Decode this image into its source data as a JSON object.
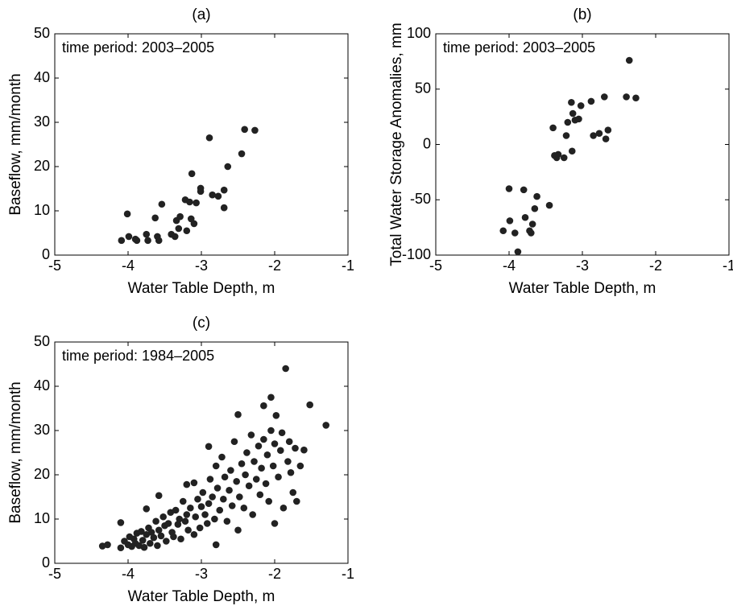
{
  "chart_data": [
    {
      "type": "scatter",
      "title": "(a)",
      "xlabel": "Water Table Depth, m",
      "ylabel": "Baseflow, mm/month",
      "annotation": "time period: 2003–2005",
      "color": "#222222",
      "x": [
        -4.09,
        -4.01,
        -3.99,
        -3.9,
        -3.88,
        -3.75,
        -3.73,
        -3.63,
        -3.6,
        -3.58,
        -3.54,
        -3.41,
        -3.36,
        -3.34,
        -3.31,
        -3.29,
        -3.22,
        -3.2,
        -3.16,
        -3.14,
        -3.13,
        -3.1,
        -3.07,
        -3.01,
        -3.01,
        -2.89,
        -2.85,
        -2.77,
        -2.69,
        -2.69,
        -2.64,
        -2.45,
        -2.41,
        -2.27
      ],
      "y": [
        3.3,
        9.3,
        4.2,
        3.6,
        3.3,
        4.7,
        3.3,
        8.4,
        4.2,
        3.3,
        11.5,
        4.7,
        4.2,
        7.8,
        6.0,
        8.7,
        12.5,
        5.5,
        12.0,
        8.2,
        18.4,
        7.1,
        11.8,
        15.1,
        14.4,
        26.5,
        13.6,
        13.3,
        14.7,
        10.7,
        20.0,
        22.9,
        28.4,
        28.2
      ],
      "xlim": [
        -5,
        -1
      ],
      "ylim": [
        0,
        50
      ],
      "xticks": [
        -5,
        -4,
        -3,
        -2,
        -1
      ],
      "yticks": [
        0,
        10,
        20,
        30,
        40,
        50
      ]
    },
    {
      "type": "scatter",
      "title": "(b)",
      "xlabel": "Water Table Depth, m",
      "ylabel": "Total Water Storage Anomalies, mm",
      "annotation": "time period: 2003–2005",
      "color": "#222222",
      "x": [
        -4.08,
        -4.0,
        -3.99,
        -3.92,
        -3.88,
        -3.8,
        -3.78,
        -3.72,
        -3.7,
        -3.68,
        -3.65,
        -3.62,
        -3.45,
        -3.4,
        -3.38,
        -3.35,
        -3.33,
        -3.25,
        -3.22,
        -3.2,
        -3.15,
        -3.14,
        -3.13,
        -3.1,
        -3.05,
        -3.02,
        -2.88,
        -2.85,
        -2.77,
        -2.7,
        -2.68,
        -2.65,
        -2.4,
        -2.36,
        -2.27
      ],
      "y": [
        -78,
        -40,
        -69,
        -80,
        -97,
        -41,
        -66,
        -78,
        -80,
        -72,
        -58,
        -47,
        -55,
        15,
        -10,
        -12,
        -9,
        -12,
        8,
        20,
        38,
        -6,
        28,
        22,
        23,
        35,
        39,
        8,
        10,
        43,
        5,
        13,
        43,
        76,
        42
      ],
      "xlim": [
        -5,
        -1
      ],
      "ylim": [
        -100,
        100
      ],
      "xticks": [
        -5,
        -4,
        -3,
        -2,
        -1
      ],
      "yticks": [
        -100,
        -50,
        0,
        50,
        100
      ]
    },
    {
      "type": "scatter",
      "title": "(c)",
      "xlabel": "Water Table Depth, m",
      "ylabel": "Baseflow, mm/month",
      "annotation": "time period: 1984–2005",
      "color": "#222222",
      "x": [
        -4.35,
        -4.28,
        -4.1,
        -4.1,
        -4.05,
        -4.0,
        -3.98,
        -3.95,
        -3.92,
        -3.9,
        -3.88,
        -3.85,
        -3.82,
        -3.8,
        -3.78,
        -3.75,
        -3.75,
        -3.72,
        -3.7,
        -3.68,
        -3.65,
        -3.62,
        -3.6,
        -3.58,
        -3.58,
        -3.55,
        -3.52,
        -3.5,
        -3.48,
        -3.45,
        -3.42,
        -3.4,
        -3.38,
        -3.35,
        -3.32,
        -3.3,
        -3.28,
        -3.25,
        -3.22,
        -3.2,
        -3.2,
        -3.18,
        -3.15,
        -3.1,
        -3.1,
        -3.08,
        -3.05,
        -3.02,
        -3.0,
        -2.98,
        -2.95,
        -2.92,
        -2.9,
        -2.9,
        -2.88,
        -2.85,
        -2.82,
        -2.8,
        -2.8,
        -2.78,
        -2.75,
        -2.72,
        -2.7,
        -2.68,
        -2.65,
        -2.62,
        -2.6,
        -2.58,
        -2.55,
        -2.52,
        -2.5,
        -2.5,
        -2.48,
        -2.45,
        -2.42,
        -2.4,
        -2.38,
        -2.35,
        -2.32,
        -2.3,
        -2.28,
        -2.25,
        -2.22,
        -2.2,
        -2.18,
        -2.15,
        -2.15,
        -2.12,
        -2.1,
        -2.08,
        -2.05,
        -2.05,
        -2.02,
        -2.0,
        -2.0,
        -1.98,
        -1.95,
        -1.92,
        -1.9,
        -1.88,
        -1.85,
        -1.82,
        -1.8,
        -1.78,
        -1.75,
        -1.72,
        -1.7,
        -1.65,
        -1.6,
        -1.52,
        -1.3
      ],
      "y": [
        3.9,
        4.2,
        9.2,
        3.5,
        5.0,
        4.2,
        6.0,
        3.8,
        5.5,
        4.5,
        6.8,
        4.0,
        7.2,
        5.2,
        3.6,
        12.3,
        6.5,
        8.0,
        4.5,
        7.0,
        5.8,
        9.5,
        4.0,
        15.3,
        7.5,
        6.2,
        10.5,
        8.5,
        5.0,
        9.0,
        11.5,
        7.0,
        6.0,
        12.0,
        8.8,
        10.0,
        5.5,
        14.0,
        9.5,
        17.8,
        11.0,
        7.5,
        12.5,
        18.2,
        6.5,
        10.5,
        14.5,
        8.0,
        12.8,
        16.0,
        11.0,
        9.0,
        26.4,
        13.5,
        19.0,
        15.0,
        10.0,
        4.2,
        22.0,
        17.0,
        12.0,
        24.0,
        14.5,
        19.5,
        9.5,
        16.5,
        21.0,
        13.0,
        27.5,
        18.5,
        33.6,
        7.5,
        15.0,
        22.5,
        12.5,
        20.0,
        25.0,
        17.5,
        29.0,
        11.0,
        23.0,
        19.0,
        26.5,
        15.5,
        21.5,
        35.6,
        28.0,
        18.0,
        24.5,
        14.0,
        37.5,
        30.0,
        22.0,
        9.0,
        27.0,
        33.4,
        19.5,
        25.5,
        29.5,
        12.5,
        44.0,
        23.0,
        27.5,
        20.5,
        16.0,
        26.0,
        14.0,
        22.0,
        25.6,
        35.8,
        31.2
      ],
      "xlim": [
        -5,
        -1
      ],
      "ylim": [
        0,
        50
      ],
      "xticks": [
        -5,
        -4,
        -3,
        -2,
        -1
      ],
      "yticks": [
        0,
        10,
        20,
        30,
        40,
        50
      ]
    }
  ]
}
